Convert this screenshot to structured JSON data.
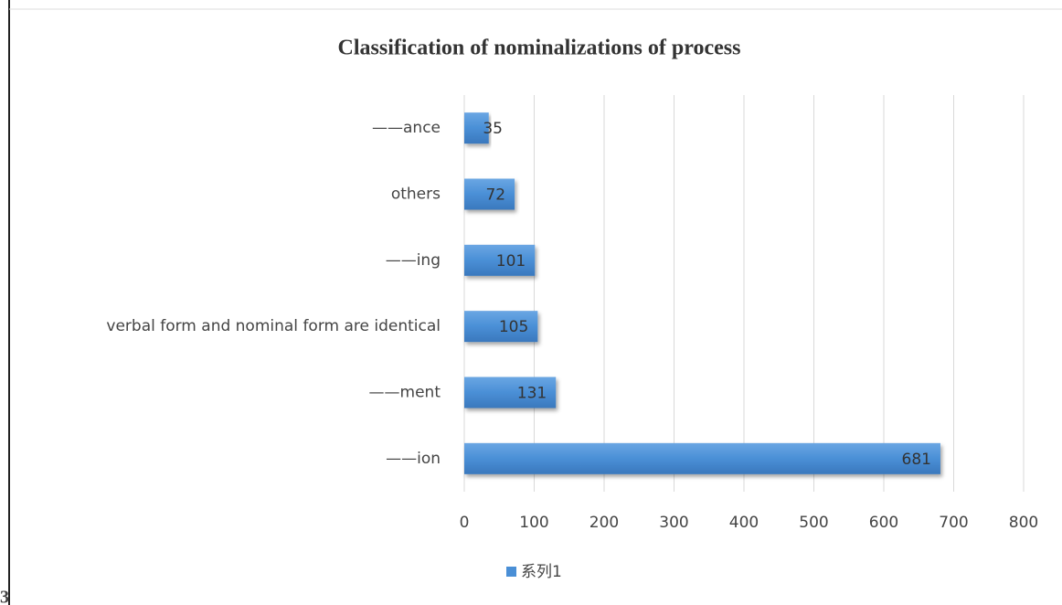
{
  "chart_data": {
    "type": "bar",
    "orientation": "horizontal",
    "title": "Classification of nominalizations of process",
    "categories": [
      "——ance",
      "others",
      "——ing",
      "verbal form and nominal form are identical",
      "——ment",
      "——ion"
    ],
    "series": [
      {
        "name": "系列1",
        "color": "#4a8fd6",
        "values": [
          35,
          72,
          101,
          105,
          131,
          681
        ]
      }
    ],
    "xlim": [
      0,
      800
    ],
    "xticks": [
      0,
      100,
      200,
      300,
      400,
      500,
      600,
      700,
      800
    ],
    "grid": true,
    "data_labels": true,
    "legend": "bottom",
    "figure_label": "3"
  }
}
